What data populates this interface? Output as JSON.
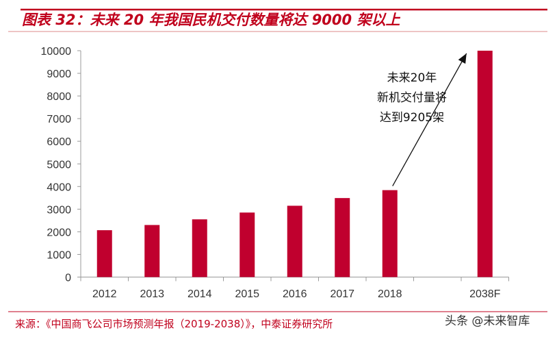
{
  "title": "图表 32：未来 20 年我国民机交付数量将达 9000 架以上",
  "source": "来源：《中国商飞公司市场预测年报（2019-2038）》，中泰证券研究所",
  "watermark": "头条 @未来智库",
  "colors": {
    "bar": "#c0002e",
    "accent": "#c0001c"
  },
  "chart_data": {
    "type": "bar",
    "categories": [
      "2012",
      "2013",
      "2014",
      "2015",
      "2016",
      "2017",
      "2018",
      "",
      "2038F"
    ],
    "values": [
      2070,
      2300,
      2550,
      2850,
      3150,
      3490,
      3840,
      null,
      10000
    ],
    "ylim": [
      0,
      10000
    ],
    "yticks": [
      0,
      1000,
      2000,
      3000,
      4000,
      5000,
      6000,
      7000,
      8000,
      9000,
      10000
    ],
    "grid": false,
    "annotation": {
      "lines": [
        "未来20年",
        "新机交付量将",
        "达到9205架"
      ],
      "arrow_from": "2018",
      "arrow_to": "2038F"
    }
  }
}
